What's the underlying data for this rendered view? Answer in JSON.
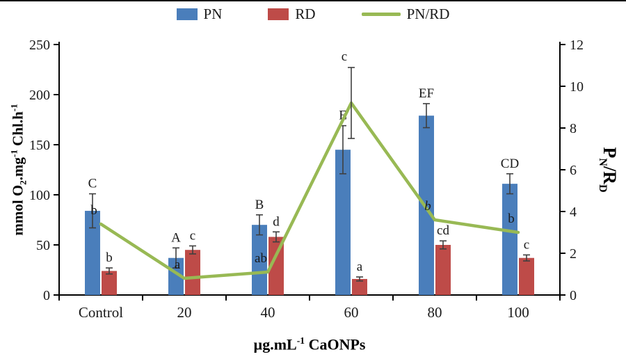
{
  "legend": {
    "items": [
      {
        "label": "PN",
        "swatch": "rect",
        "color": "#4a7ebb"
      },
      {
        "label": "RD",
        "swatch": "rect",
        "color": "#be4b48"
      },
      {
        "label": "PN/RD",
        "swatch": "line",
        "color": "#98b954"
      }
    ]
  },
  "chart_data": {
    "type": "bar",
    "subtype": "grouped bars with secondary-axis line (combo chart)",
    "categories": [
      "Control",
      "20",
      "40",
      "60",
      "80",
      "100"
    ],
    "series": [
      {
        "name": "PN",
        "type": "bar",
        "axis": "left",
        "color": "#4a7ebb",
        "values": [
          84,
          37,
          70,
          145,
          179,
          111
        ],
        "errors": [
          17,
          10,
          10,
          24,
          12,
          10
        ],
        "letters": [
          "C",
          "A",
          "B",
          "E",
          "EF",
          "CD"
        ],
        "letters_italic": [
          false,
          false,
          false,
          false,
          false,
          false
        ]
      },
      {
        "name": "RD",
        "type": "bar",
        "axis": "left",
        "color": "#be4b48",
        "values": [
          24,
          45,
          58,
          16,
          50,
          37
        ],
        "errors": [
          3,
          4,
          5,
          2,
          4,
          3
        ],
        "letters": [
          "b",
          "c",
          "d",
          "a",
          "cd",
          "c"
        ],
        "letters_italic": [
          false,
          false,
          false,
          false,
          false,
          false
        ]
      },
      {
        "name": "PN/RD",
        "type": "line",
        "axis": "right",
        "color": "#98b954",
        "values": [
          3.4,
          0.8,
          1.1,
          9.2,
          3.6,
          3.0
        ],
        "errors": [
          0,
          0,
          0,
          1.7,
          0,
          0
        ],
        "letters": [
          "b",
          "a",
          "ab",
          "c",
          "b",
          "b"
        ],
        "letters_italic": [
          false,
          false,
          false,
          false,
          true,
          false
        ]
      }
    ],
    "left_axis": {
      "min": 0,
      "max": 250,
      "step": 50,
      "title_parts": [
        {
          "t": "mmol O"
        },
        {
          "t": "2",
          "sub": true
        },
        {
          "t": ".mg"
        },
        {
          "t": "-1",
          "sup": true
        },
        {
          "t": " Chl.h"
        },
        {
          "t": "-1",
          "sup": true
        }
      ]
    },
    "right_axis": {
      "min": 0,
      "max": 12,
      "step": 2,
      "title_parts": [
        {
          "t": "P"
        },
        {
          "t": "N",
          "sub": true
        },
        {
          "t": "/R"
        },
        {
          "t": "D",
          "sub": true
        }
      ]
    },
    "x_axis": {
      "title_parts": [
        {
          "t": "µg.mL"
        },
        {
          "t": "-1",
          "sup": true
        },
        {
          "t": " CaONPs"
        }
      ]
    },
    "grid": false,
    "legend_position": "top",
    "error_bar_color": "#3f3f3f"
  }
}
